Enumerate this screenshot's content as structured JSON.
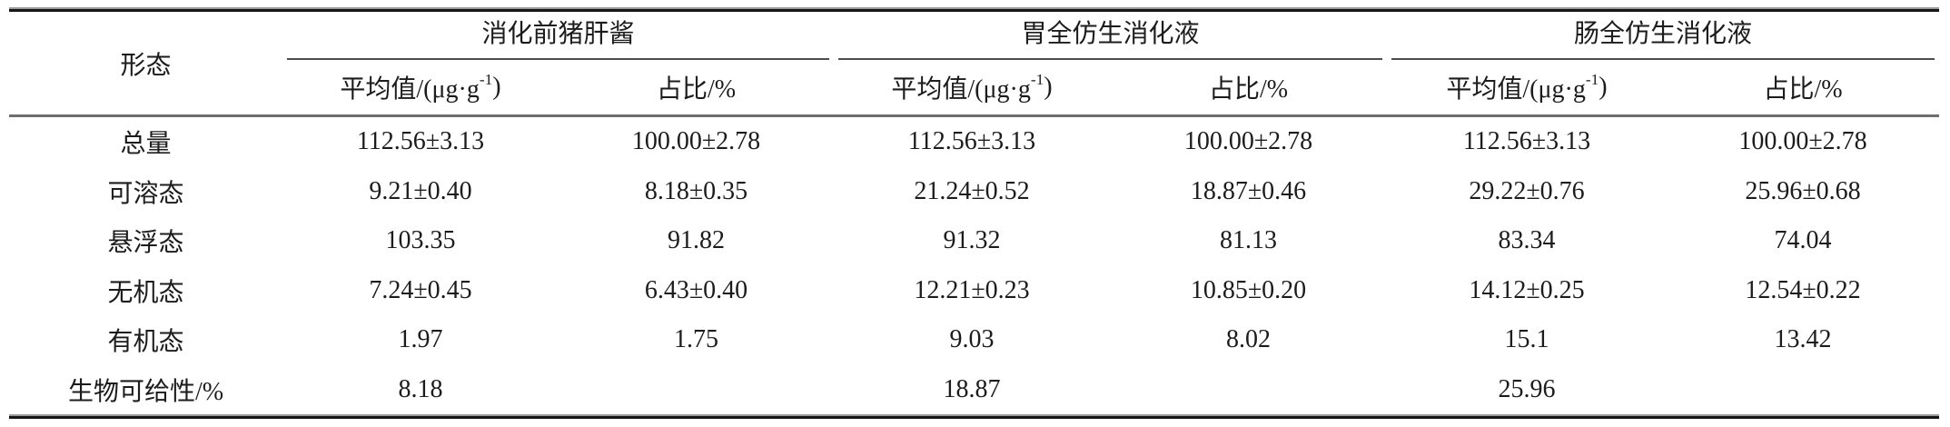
{
  "table": {
    "corner_label": "形态",
    "groups": [
      {
        "title": "消化前猪肝酱",
        "mean_header_pre": "平均值/(μg·g",
        "mean_header_sup": "-1",
        "mean_header_post": ")",
        "ratio_header": "占比/%"
      },
      {
        "title": "胃全仿生消化液",
        "mean_header_pre": "平均值/(μg·g",
        "mean_header_sup": "-1",
        "mean_header_post": ")",
        "ratio_header": "占比/%"
      },
      {
        "title": "肠全仿生消化液",
        "mean_header_pre": "平均值/(μg·g",
        "mean_header_sup": "-1",
        "mean_header_post": ")",
        "ratio_header": "占比/%"
      }
    ],
    "rows": [
      {
        "label": "总量",
        "values": [
          "112.56±3.13",
          "100.00±2.78",
          "112.56±3.13",
          "100.00±2.78",
          "112.56±3.13",
          "100.00±2.78"
        ]
      },
      {
        "label": "可溶态",
        "values": [
          "9.21±0.40",
          "8.18±0.35",
          "21.24±0.52",
          "18.87±0.46",
          "29.22±0.76",
          "25.96±0.68"
        ]
      },
      {
        "label": "悬浮态",
        "values": [
          "103.35",
          "91.82",
          "91.32",
          "81.13",
          "83.34",
          "74.04"
        ]
      },
      {
        "label": "无机态",
        "values": [
          "7.24±0.45",
          "6.43±0.40",
          "12.21±0.23",
          "10.85±0.20",
          "14.12±0.25",
          "12.54±0.22"
        ]
      },
      {
        "label": "有机态",
        "values": [
          "1.97",
          "1.75",
          "9.03",
          "8.02",
          "15.1",
          "13.42"
        ]
      },
      {
        "label": "生物可给性/%",
        "values": [
          "8.18",
          "",
          "18.87",
          "",
          "25.96",
          ""
        ]
      }
    ],
    "colors": {
      "text": "#1c1c1c",
      "rule_heavy": "#161616",
      "rule_mid": "#6e6e6e",
      "rule_group": "#4d4d4d",
      "background": "#ffffff"
    }
  }
}
